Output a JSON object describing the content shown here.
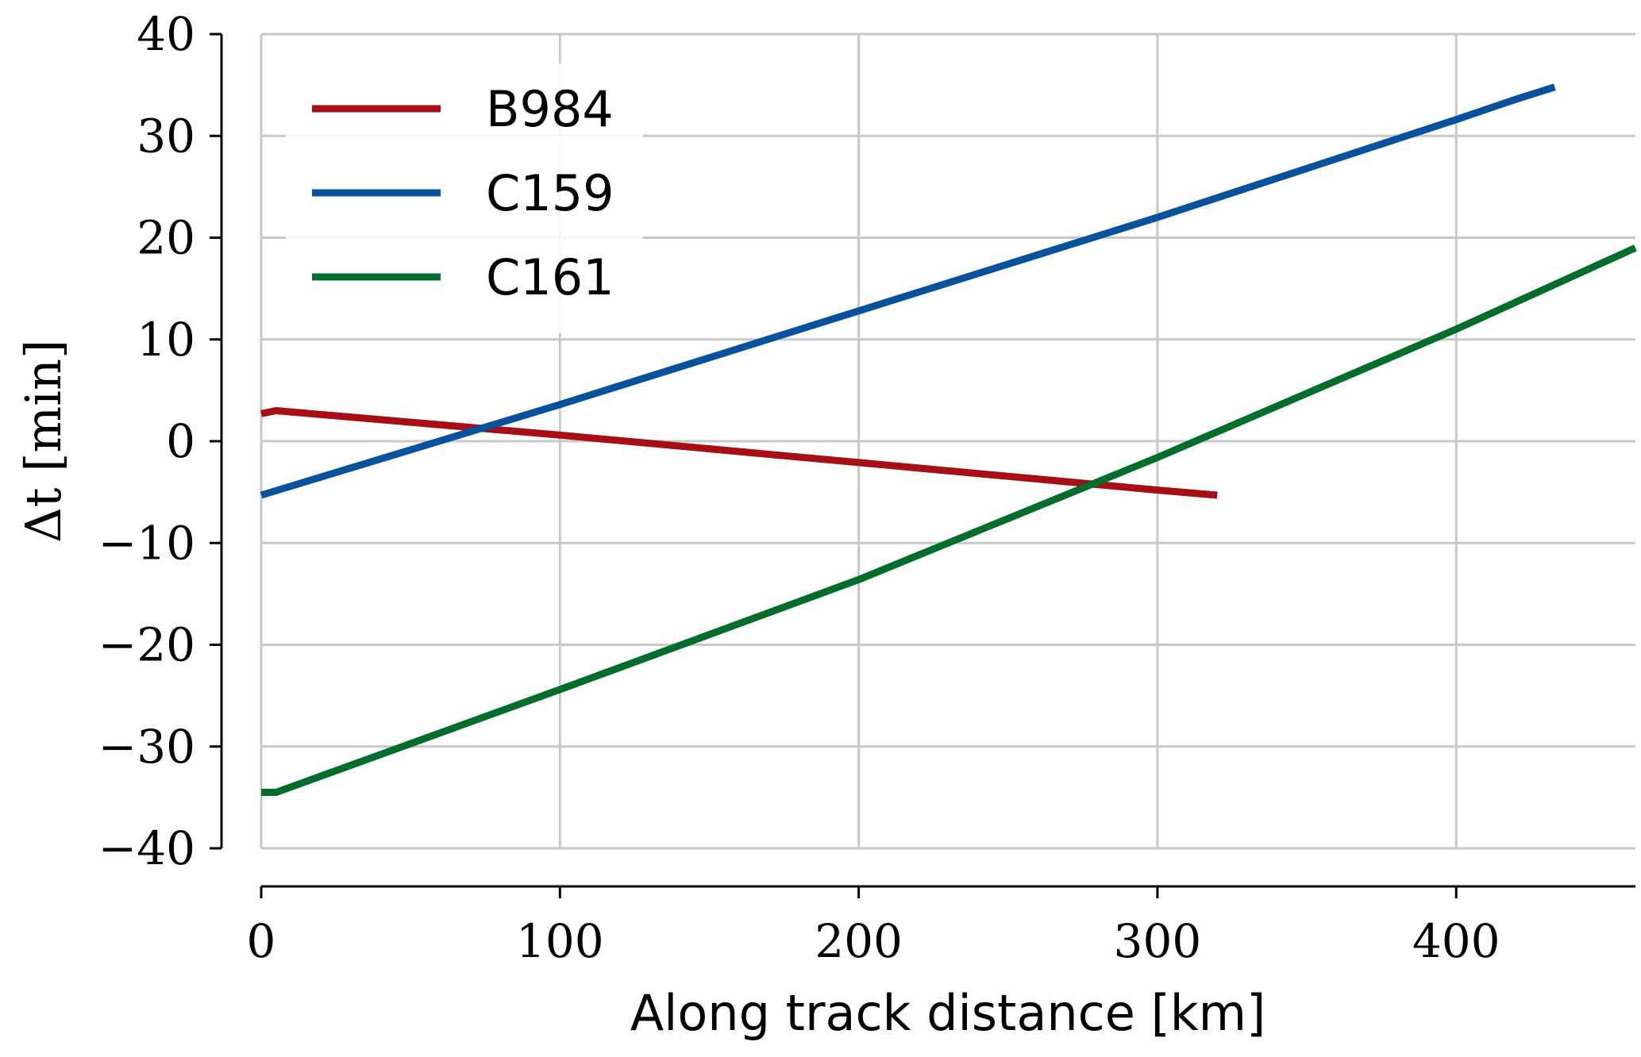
{
  "chart_data": {
    "type": "line",
    "xlabel": "Along track distance [km]",
    "ylabel": "Δt [min]",
    "xlim": [
      0,
      460
    ],
    "ylim": [
      -40,
      40
    ],
    "xticks": [
      0,
      100,
      200,
      300,
      400
    ],
    "yticks": [
      40,
      30,
      20,
      10,
      0,
      -10,
      -20,
      -30,
      -40
    ],
    "xtick_labels": [
      "0",
      "100",
      "200",
      "300",
      "400"
    ],
    "ytick_labels": [
      "40",
      "30",
      "20",
      "10",
      "0",
      "−10",
      "−20",
      "−30",
      "−40"
    ],
    "grid": true,
    "legend_position": "top-left",
    "series": [
      {
        "name": "B984",
        "color": "#a50f15",
        "x": [
          0,
          5,
          100,
          200,
          300,
          320
        ],
        "y": [
          2.7,
          3.0,
          0.6,
          -2.1,
          -4.8,
          -5.3
        ]
      },
      {
        "name": "C159",
        "color": "#08519c",
        "x": [
          0,
          100,
          200,
          300,
          400,
          420,
          433
        ],
        "y": [
          -5.3,
          3.6,
          12.8,
          22.0,
          31.6,
          33.6,
          34.8
        ]
      },
      {
        "name": "C161",
        "color": "#006d2c",
        "x": [
          0,
          5,
          100,
          200,
          300,
          400,
          460
        ],
        "y": [
          -34.5,
          -34.5,
          -24.4,
          -13.6,
          -1.6,
          11.0,
          19.0
        ]
      }
    ]
  }
}
